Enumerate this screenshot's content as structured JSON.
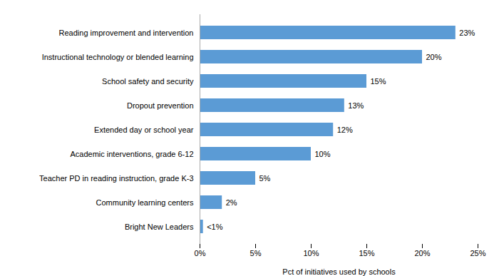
{
  "chart_data": {
    "type": "bar",
    "orientation": "horizontal",
    "categories": [
      "Bright New Leaders",
      "Community learning centers",
      "Teacher PD in reading instruction, grade K-3",
      "Academic interventions, grade 6-12",
      "Extended day or school year",
      "Dropout prevention",
      "School safety and security",
      "Instructional technology or blended learning",
      "Reading improvement and intervention"
    ],
    "values": [
      0.3,
      2,
      5,
      10,
      12,
      13,
      15,
      20,
      23
    ],
    "value_labels": [
      "<1%",
      "2%",
      "5%",
      "10%",
      "12%",
      "13%",
      "15%",
      "20%",
      "23%"
    ],
    "data_labels": true,
    "color": "#5b9bd5",
    "xlabel": "Pct of initiatives used by schools",
    "xlim": [
      0,
      25
    ],
    "xticks": [
      {
        "value": 0,
        "label": "0%"
      },
      {
        "value": 5,
        "label": "5%"
      },
      {
        "value": 10,
        "label": "10%"
      },
      {
        "value": 15,
        "label": "15%"
      },
      {
        "value": 20,
        "label": "20%"
      },
      {
        "value": 25,
        "label": "25%"
      }
    ],
    "grid": false
  }
}
